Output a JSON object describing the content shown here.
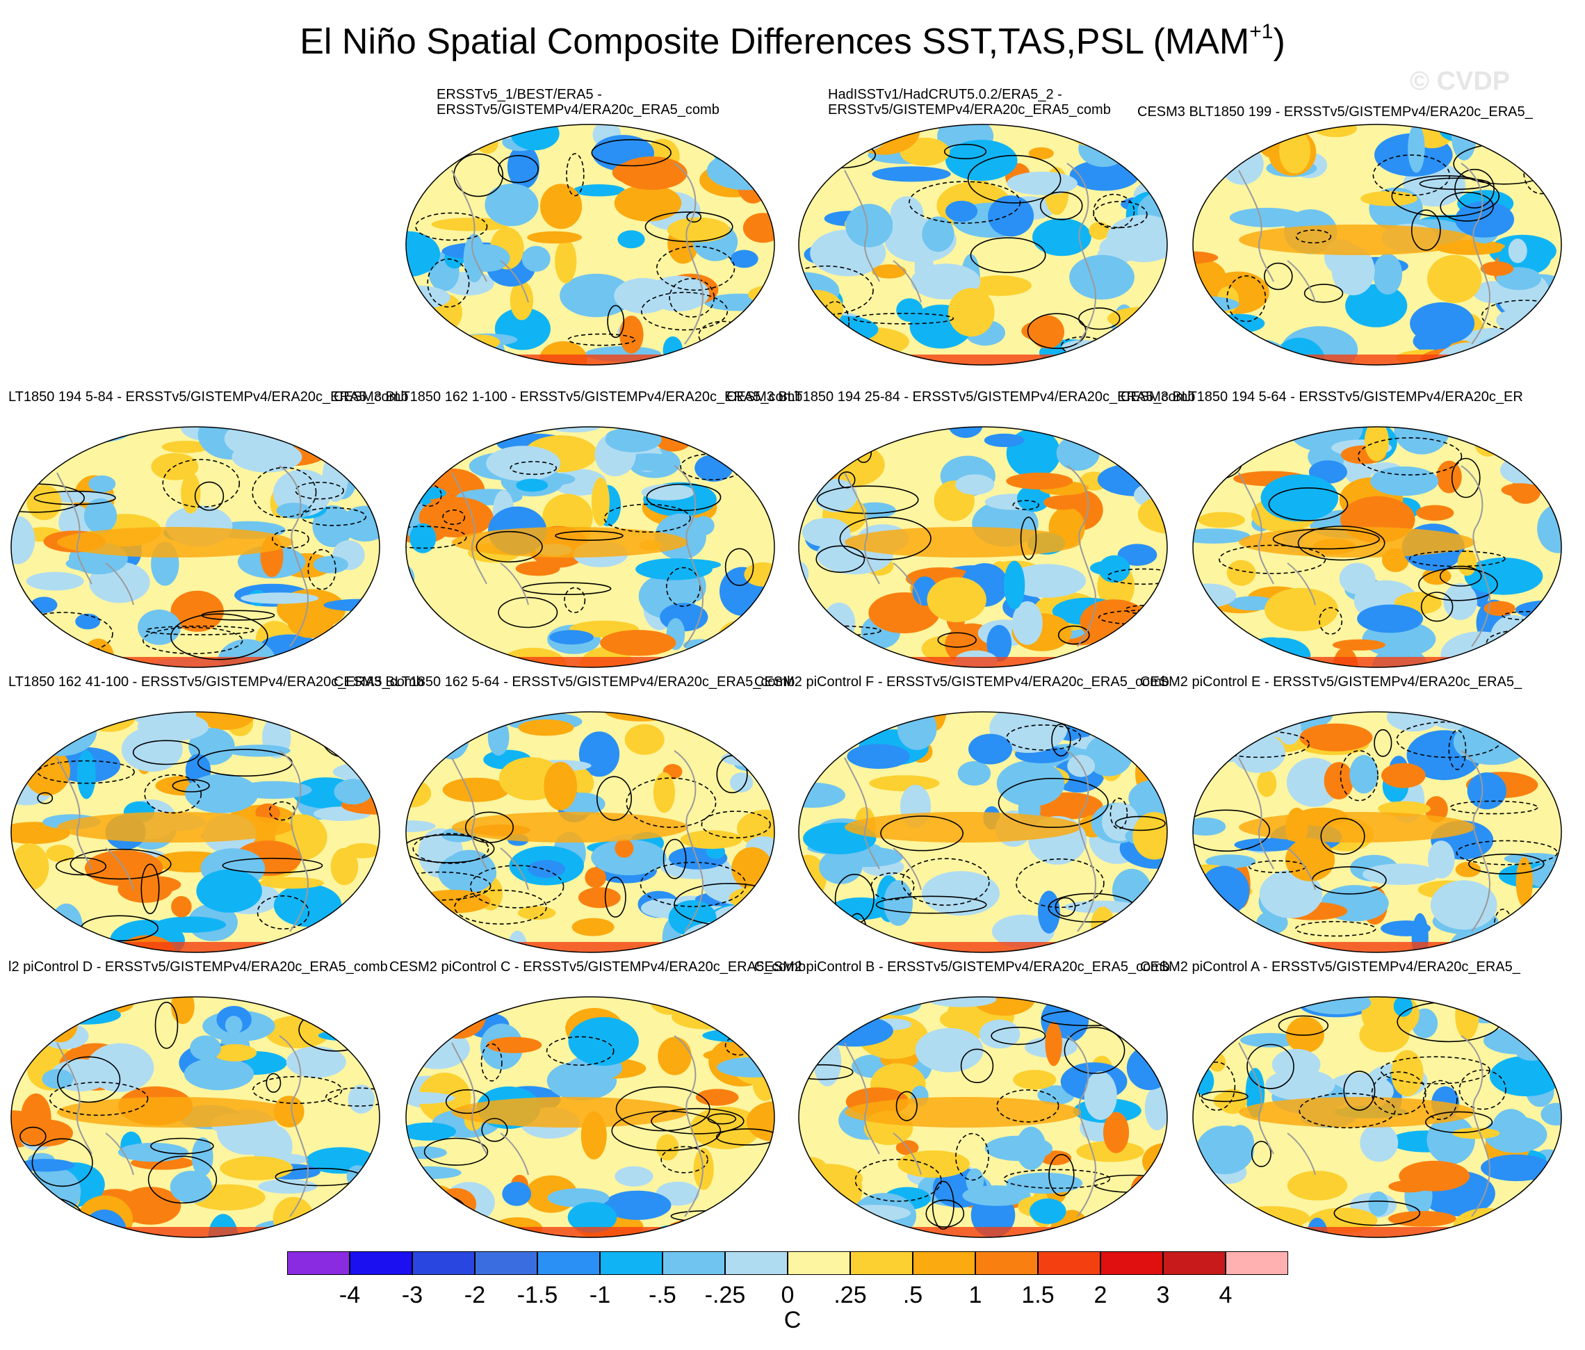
{
  "title": {
    "main": "El Niño Spatial Composite Differences SST,TAS,PSL (MAM",
    "superscript": "+1",
    "close": ")"
  },
  "watermark": "© CVDP",
  "panels": [
    {
      "label": "ERSSTv5_1/BEST/ERA5 - ERSSTv5/GISTEMPv4/ERA20c_ERA5_comb",
      "line1": "ERSSTv5_1/BEST/ERA5 -",
      "line2": "ERSSTv5/GISTEMPv4/ERA20c_ERA5_comb"
    },
    {
      "label": "HadISSTv1/HadCRUT5.0.2/ERA5_2 - ERSSTv5/GISTEMPv4/ERA20c_ERA5_comb",
      "line1": "HadISSTv1/HadCRUT5.0.2/ERA5_2 -",
      "line2": "ERSSTv5/GISTEMPv4/ERA20c_ERA5_comb"
    },
    {
      "label": "CESM3 BLT1850 199 - ERSSTv5/GISTEMPv4/ERA20c_ERA5_"
    },
    {
      "label": "LT1850 194 5-84 - ERSSTv5/GISTEMPv4/ERA20c_ERA5_comb"
    },
    {
      "label": "CESM3 BLT1850 162 1-100 - ERSSTv5/GISTEMPv4/ERA20c_ERA5_comb"
    },
    {
      "label": "CESM3 BLT1850 194 25-84 - ERSSTv5/GISTEMPv4/ERA20c_ERA5_comb"
    },
    {
      "label": "CESM3 BLT1850 194 5-64 - ERSSTv5/GISTEMPv4/ERA20c_ER"
    },
    {
      "label": "LT1850 162 41-100 - ERSSTv5/GISTEMPv4/ERA20c_ERA5_comb"
    },
    {
      "label": "CESM3 BLT1850 162 5-64 - ERSSTv5/GISTEMPv4/ERA20c_ERA5_comb"
    },
    {
      "label": "CESM2 piControl F - ERSSTv5/GISTEMPv4/ERA20c_ERA5_comb"
    },
    {
      "label": "CESM2 piControl E - ERSSTv5/GISTEMPv4/ERA20c_ERA5_"
    },
    {
      "label": "l2 piControl D - ERSSTv5/GISTEMPv4/ERA20c_ERA5_comb"
    },
    {
      "label": "CESM2 piControl C - ERSSTv5/GISTEMPv4/ERA20c_ERA5_comb"
    },
    {
      "label": "CESM2 piControl B - ERSSTv5/GISTEMPv4/ERA20c_ERA5_comb"
    },
    {
      "label": "CESM2 piControl A - ERSSTv5/GISTEMPv4/ERA20c_ERA5_"
    }
  ],
  "colorbar": {
    "colors": [
      "#8a2be2",
      "#1a10f0",
      "#2a46e0",
      "#3a6ee0",
      "#2a90f5",
      "#10b4f5",
      "#70c4f0",
      "#b0dcf2",
      "#fdf5a0",
      "#fcd030",
      "#fbaa10",
      "#f98010",
      "#f44010",
      "#e01010",
      "#c81a1a",
      "#ffb0b0"
    ],
    "labels": [
      "-4",
      "-3",
      "-2",
      "-1.5",
      "-1",
      "-.5",
      "-.25",
      "0",
      ".25",
      ".5",
      "1",
      "1.5",
      "2",
      "3",
      "4"
    ],
    "units": "C"
  }
}
